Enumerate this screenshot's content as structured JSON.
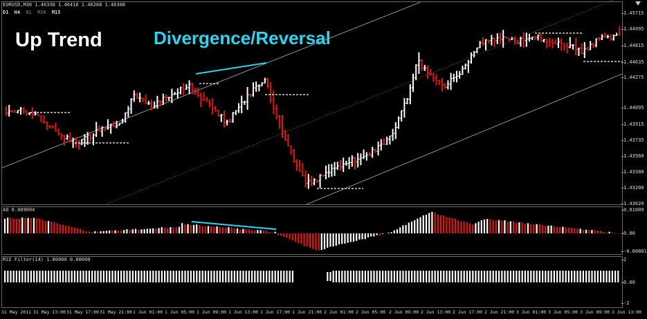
{
  "window": {
    "symbol_header": "EURUSD,M30  1.46330 1.46416 1.46268 1.46308",
    "timeframes": [
      {
        "label": "D1",
        "active": true
      },
      {
        "label": "H4",
        "active": true
      },
      {
        "label": "H1",
        "active": false
      },
      {
        "label": "M30",
        "active": false
      },
      {
        "label": "M15",
        "active": true
      }
    ]
  },
  "annotations": {
    "trend_label": "Up Trend",
    "divergence_label": "Divergence/Reversal"
  },
  "price_axis": [
    "1.45715",
    "1.44995",
    "1.44815",
    "1.44635",
    "1.44275",
    "1.44095",
    "1.43915",
    "1.43735",
    "1.43560",
    "1.43380",
    "1.43200",
    "1.43020"
  ],
  "indicators": {
    "ao": {
      "label": "AO 0.009094",
      "axis": [
        "0.01009",
        "0.00",
        "-0.00801"
      ]
    },
    "rsi_filter": {
      "label": "RSI Filter(14) 1.00000 0.00000",
      "axis": [
        "2",
        "0.00",
        "-2"
      ]
    }
  },
  "time_axis": [
    "31 May 2011",
    "31 May 13:00",
    "31 May 17:00",
    "31 May 21:00",
    "1 Jun 01:00",
    "1 Jun 05:00",
    "1 Jun 09:00",
    "1 Jun 13:00",
    "1 Jun 17:00",
    "1 Jun 21:00",
    "2 Jun 01:00",
    "2 Jun 05:00",
    "2 Jun 09:00",
    "2 Jun 13:00",
    "2 Jun 17:00",
    "2 Jun 21:00",
    "3 Jun 01:00",
    "3 Jun 05:00",
    "3 Jun 09:00",
    "3 Jun 13:00"
  ],
  "colors": {
    "bull": "#ffffff",
    "bear": "#e41414",
    "annotation": "#27d6f0",
    "channel": "#b0b0b0",
    "grid_border": "#6a6a6a"
  },
  "icons": {
    "corner": "chart-corner-icon"
  }
}
